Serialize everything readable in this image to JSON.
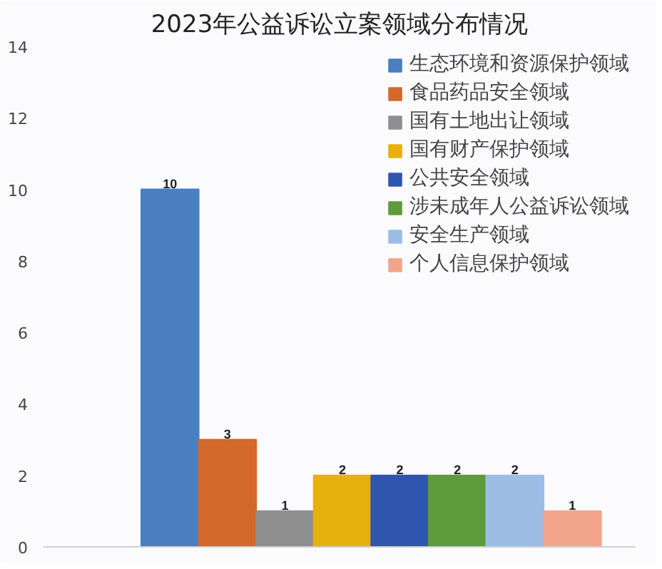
{
  "chart_data": {
    "type": "bar",
    "title": "2023年公益诉讼立案领域分布情况",
    "categories": [
      null
    ],
    "series": [
      {
        "name": "生态环境和资源保护领域",
        "color": "#4a7fc1",
        "values": [
          10
        ]
      },
      {
        "name": "食品药品安全领域",
        "color": "#d2692a",
        "values": [
          3
        ]
      },
      {
        "name": "国有土地出让领域",
        "color": "#8e8e8e",
        "values": [
          1
        ]
      },
      {
        "name": "国有财产保护领域",
        "color": "#e8b00c",
        "values": [
          2
        ]
      },
      {
        "name": "公共安全领域",
        "color": "#2f56ad",
        "values": [
          2
        ]
      },
      {
        "name": "涉未成年人公益诉讼领域",
        "color": "#5f9b3a",
        "values": [
          2
        ]
      },
      {
        "name": "安全生产领域",
        "color": "#9dbde4",
        "values": [
          2
        ]
      },
      {
        "name": "个人信息保护领域",
        "color": "#f3a58b",
        "values": [
          1
        ]
      }
    ],
    "ylim": [
      0,
      14
    ],
    "yticks": [
      0,
      2,
      4,
      6,
      8,
      10,
      12,
      14
    ],
    "grid": false,
    "legend": "top right",
    "data_labels": true
  }
}
